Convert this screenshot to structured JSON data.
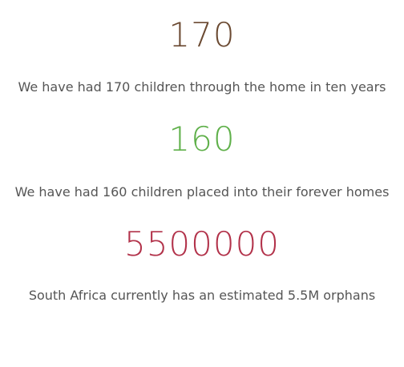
{
  "stats": [
    {
      "number": "170",
      "color": "#6b4a32",
      "description": "We have had 170 children through the home in ten years"
    },
    {
      "number": "160",
      "color": "#5fb04a",
      "description": "We have had 160 children placed into their forever homes"
    },
    {
      "number": "5500000",
      "color": "#b2324a",
      "description": "South Africa currently has an estimated 5.5M orphans"
    }
  ]
}
